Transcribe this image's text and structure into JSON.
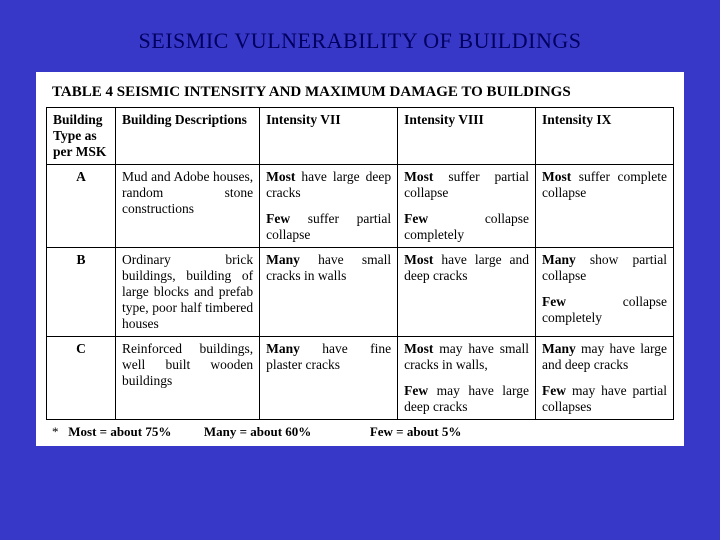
{
  "slide": {
    "title": "SEISMIC VULNERABILITY OF BUILDINGS",
    "background_color": "#3838c8",
    "title_color": "#000060"
  },
  "table": {
    "title": "TABLE 4  SEISMIC INTENSITY AND MAXIMUM DAMAGE TO BUILDINGS",
    "headers": {
      "col1": "Building Type as per MSK",
      "col2": "Building Descriptions",
      "col3": "Intensity VII",
      "col4": "Intensity VIII",
      "col5": "Intensity IX"
    },
    "rows": [
      {
        "type": "A",
        "desc": "Mud and Adobe houses, random stone constructions",
        "i7_a_bold": "Most",
        "i7_a_rest": " have large deep cracks",
        "i7_b_bold": "Few",
        "i7_b_rest": " suffer partial collapse",
        "i8_a_bold": "Most",
        "i8_a_rest": " suffer partial collapse",
        "i8_b_bold": "Few",
        "i8_b_rest": " collapse completely",
        "i9_a_bold": "Most",
        "i9_a_rest": " suffer complete collapse",
        "i9_b_bold": "",
        "i9_b_rest": ""
      },
      {
        "type": "B",
        "desc": "Ordinary brick buildings, building of large blocks and prefab type, poor half timbered houses",
        "i7_a_bold": "Many",
        "i7_a_rest": " have small cracks in walls",
        "i7_b_bold": "",
        "i7_b_rest": "",
        "i8_a_bold": "Most",
        "i8_a_rest": " have large and deep cracks",
        "i8_b_bold": "",
        "i8_b_rest": "",
        "i9_a_bold": "Many",
        "i9_a_rest": " show partial collapse",
        "i9_b_bold": "Few",
        "i9_b_rest": " collapse completely"
      },
      {
        "type": "C",
        "desc": "Reinforced buildings, well built wooden buildings",
        "i7_a_bold": "Many",
        "i7_a_rest": " have fine plaster cracks",
        "i7_b_bold": "",
        "i7_b_rest": "",
        "i8_a_bold": "Most",
        "i8_a_rest": " may have small cracks in walls,",
        "i8_b_bold": "Few",
        "i8_b_rest": " may have large deep cracks",
        "i9_a_bold": "Many",
        "i9_a_rest": " may have large and deep cracks",
        "i9_b_bold": "Few",
        "i9_b_rest": " may have partial collapses"
      }
    ],
    "footnote": {
      "star": "*",
      "most_label": "Most  =  about 75%",
      "many_label": "Many  =  about 60%",
      "few_label": "Few = about 5%"
    }
  }
}
